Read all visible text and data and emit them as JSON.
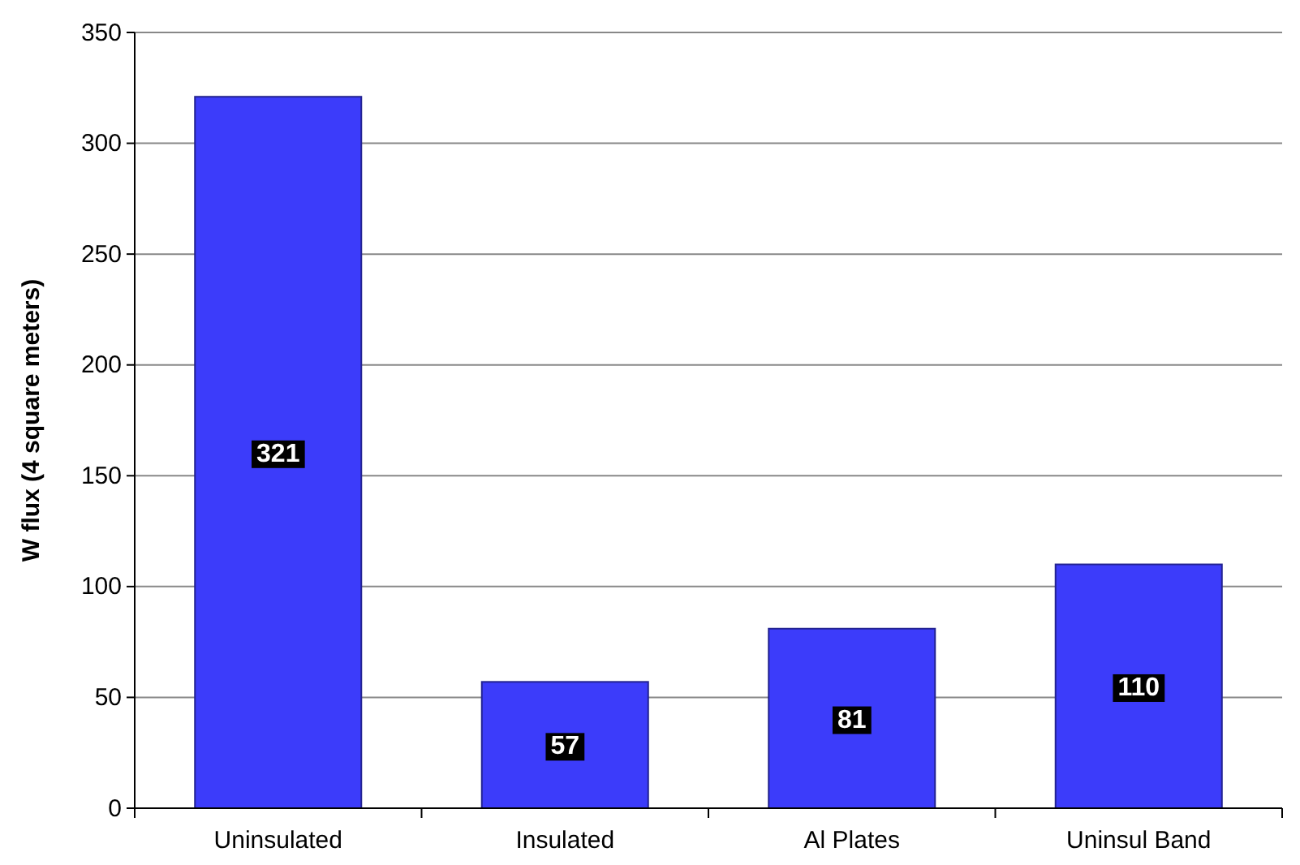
{
  "chart_data": {
    "type": "bar",
    "ylabel": "W flux (4 square meters)",
    "categories": [
      "Uninsulated",
      "Insulated",
      "Al Plates",
      "Uninsul Band"
    ],
    "values": [
      321,
      57,
      81,
      110
    ],
    "color": "#3c3cfa",
    "ylim": [
      0,
      350
    ],
    "yticks": [
      0,
      50,
      100,
      150,
      200,
      250,
      300,
      350
    ],
    "grid": "y",
    "data_labels": true
  }
}
